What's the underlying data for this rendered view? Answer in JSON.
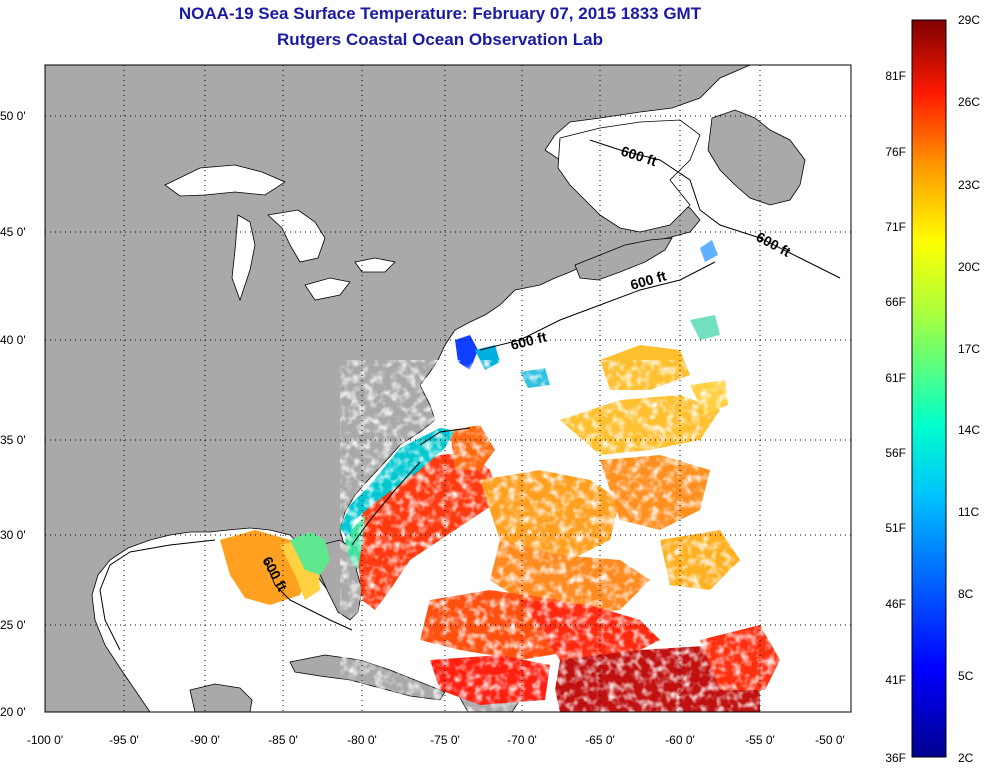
{
  "title": "NOAA-19 Sea Surface Temperature:  February 07, 2015 1833 GMT",
  "subtitle": "Rutgers Coastal Ocean Observation Lab",
  "lat_ticks": [
    "50 0'",
    "45 0'",
    "40 0'",
    "35 0'",
    "30 0'",
    "25 0'",
    "20 0'"
  ],
  "lon_ticks": [
    "-100 0'",
    "-95 0'",
    "-90 0'",
    "-85 0'",
    "-80 0'",
    "-75 0'",
    "-70 0'",
    "-65 0'",
    "-60 0'",
    "-55 0'",
    "-50 0'"
  ],
  "isobath_label": "600 ft",
  "colorbar": {
    "fahrenheit": [
      "81F",
      "76F",
      "71F",
      "66F",
      "61F",
      "56F",
      "51F",
      "46F",
      "41F",
      "36F"
    ],
    "celsius": [
      "29C",
      "26C",
      "23C",
      "20C",
      "17C",
      "14C",
      "11C",
      "8C",
      "5C",
      "2C"
    ]
  },
  "colors": {
    "land": "#a9a9a9",
    "ocean_no_data": "#ffffff",
    "title": "#1a1aa6"
  }
}
